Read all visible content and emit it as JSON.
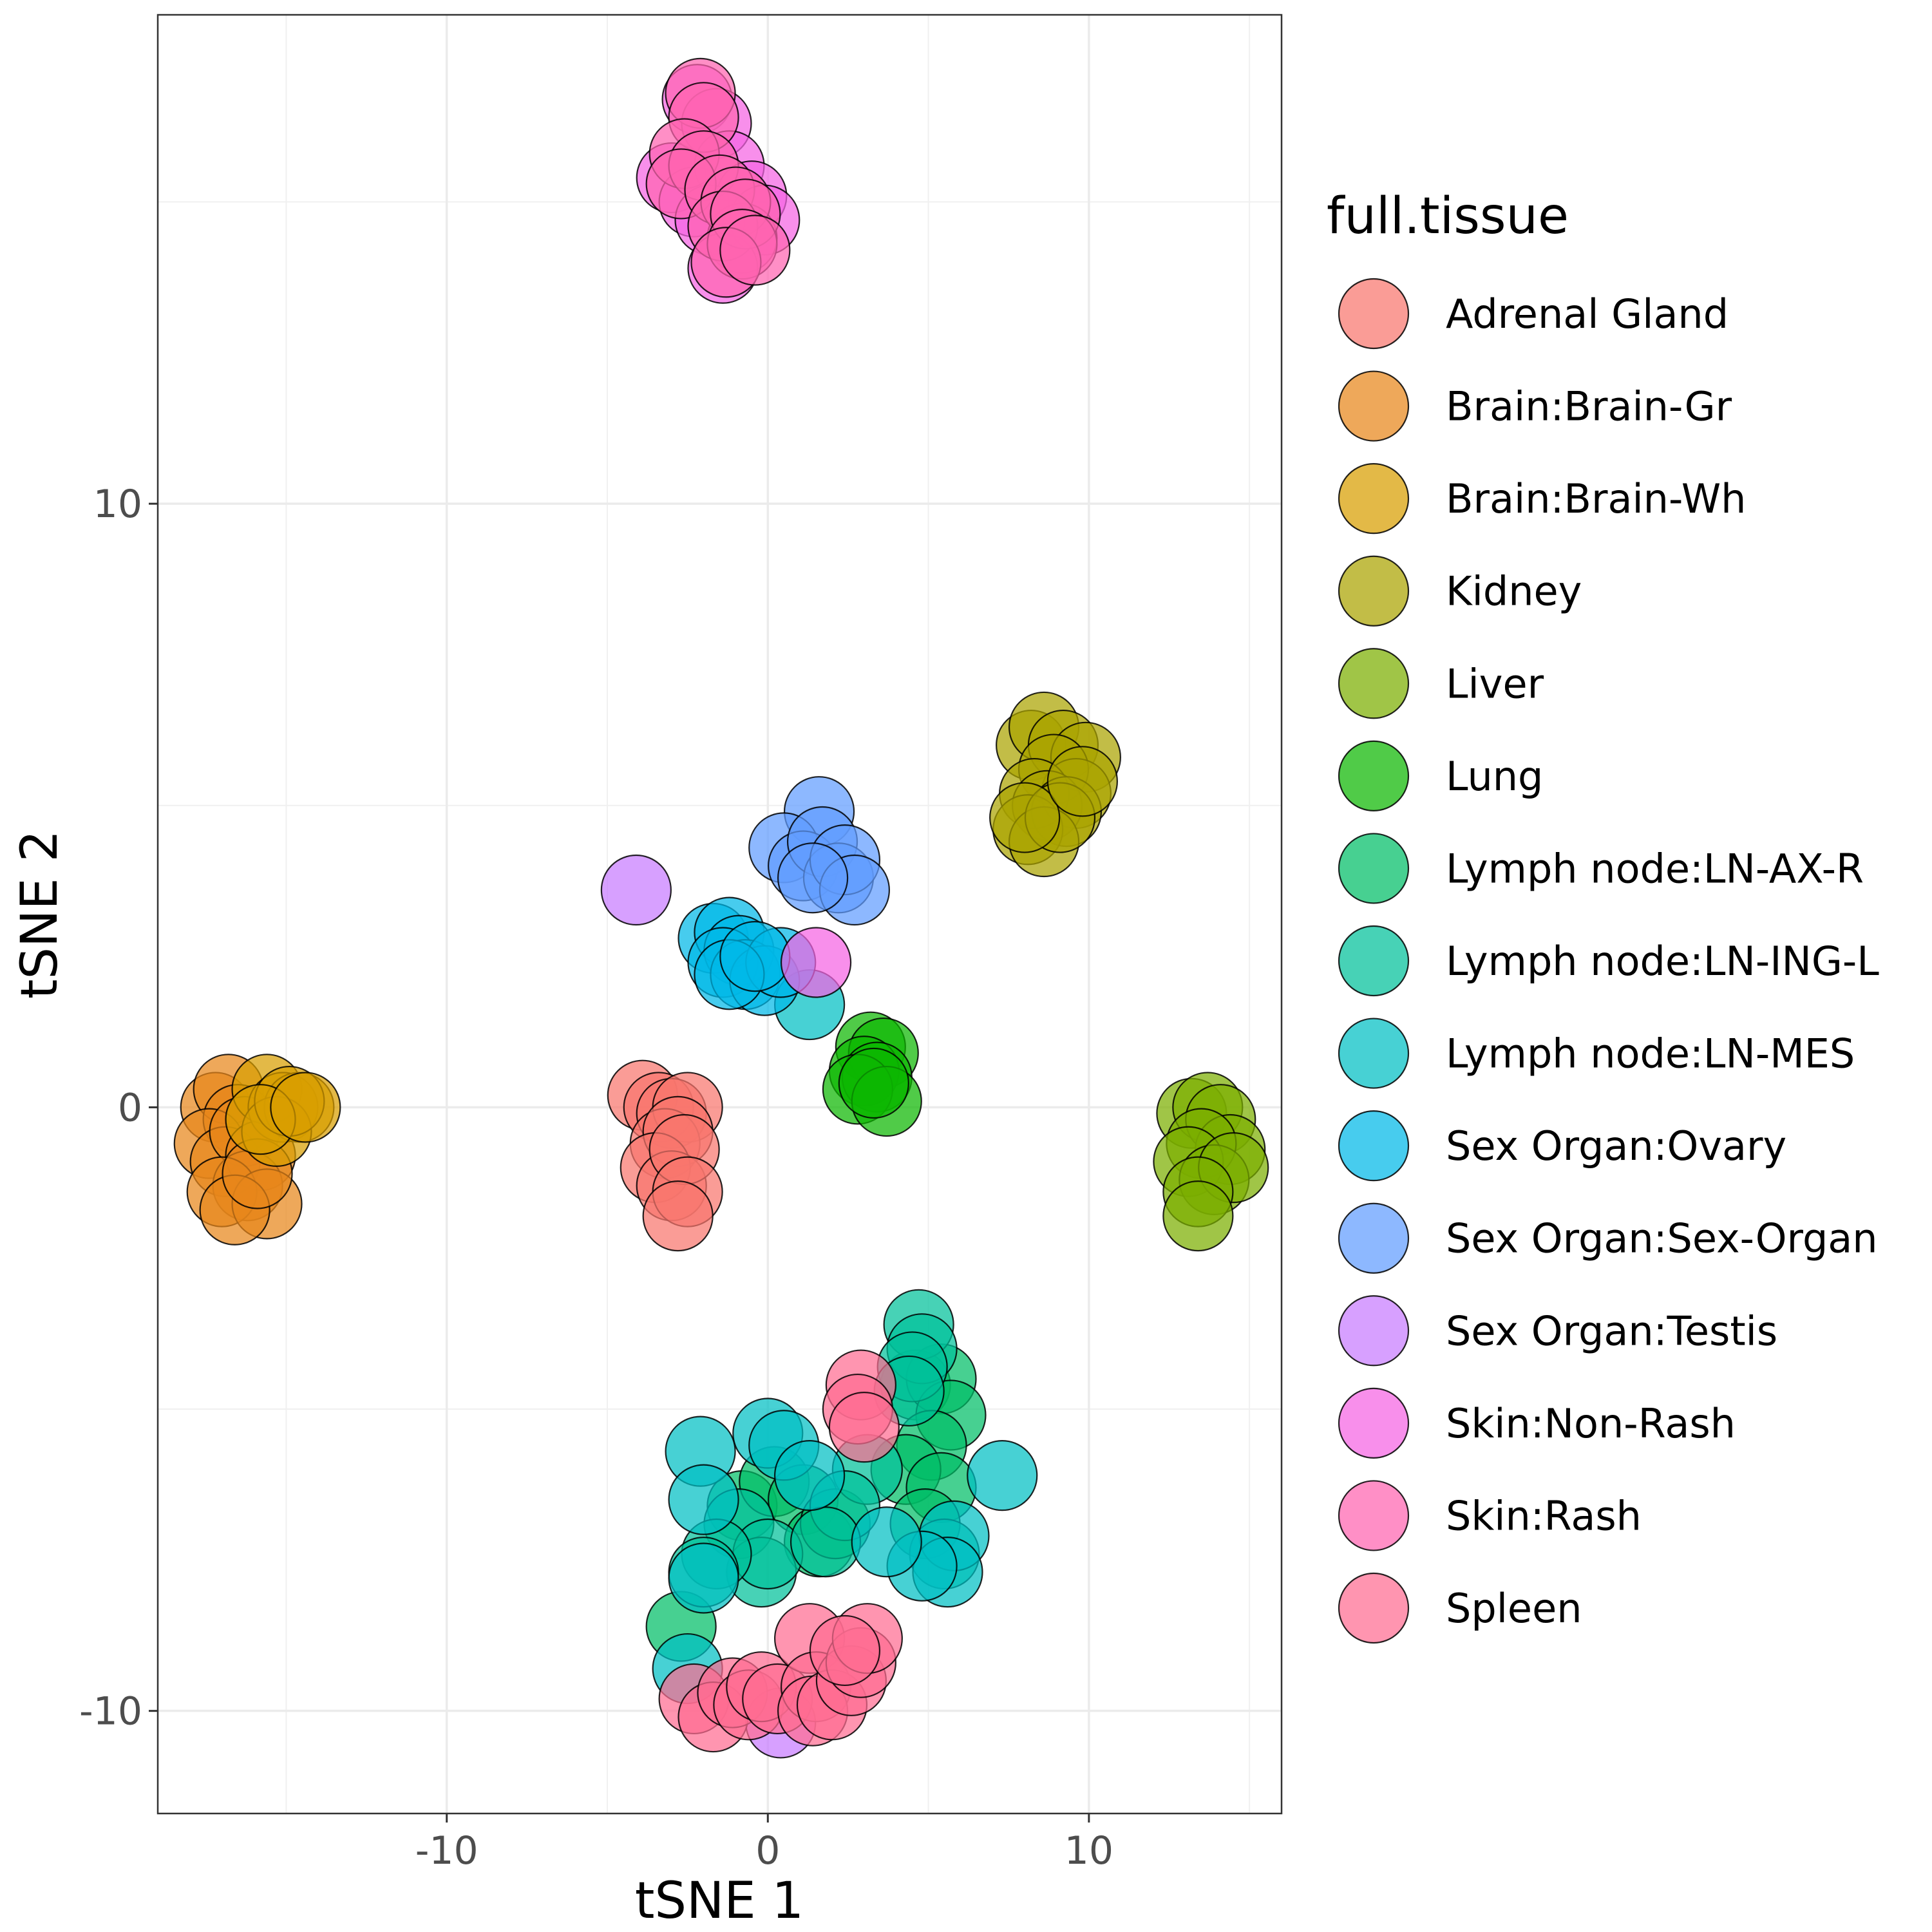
{
  "chart_data": {
    "type": "scatter",
    "xlabel": "tSNE 1",
    "ylabel": "tSNE 2",
    "xlim": [
      -19,
      16
    ],
    "ylim": [
      -11.7,
      18.1
    ],
    "xticks": [
      -10,
      0,
      10
    ],
    "yticks": [
      -10,
      0,
      10
    ],
    "grid": true,
    "legend": {
      "title": "full.tissue",
      "position": "right"
    },
    "series": [
      {
        "name": "Adrenal Gland",
        "color": "#F8766D",
        "points": [
          [
            -3.9,
            0.2
          ],
          [
            -3.4,
            0.0
          ],
          [
            -3.0,
            -0.1
          ],
          [
            -2.5,
            0.0
          ],
          [
            -3.2,
            -0.6
          ],
          [
            -2.8,
            -0.4
          ],
          [
            -3.5,
            -1.0
          ],
          [
            -3.0,
            -1.3
          ],
          [
            -2.6,
            -0.7
          ],
          [
            -2.5,
            -1.4
          ],
          [
            -2.8,
            -1.8
          ]
        ]
      },
      {
        "name": "Brain:Brain-Gr",
        "color": "#E7861B",
        "points": [
          [
            -17.2,
            0.0
          ],
          [
            -16.8,
            0.3
          ],
          [
            -16.5,
            -0.2
          ],
          [
            -17.4,
            -0.6
          ],
          [
            -16.9,
            -0.9
          ],
          [
            -16.3,
            -0.4
          ],
          [
            -15.8,
            -0.8
          ],
          [
            -16.2,
            -1.3
          ],
          [
            -17.0,
            -1.4
          ],
          [
            -15.6,
            -1.6
          ],
          [
            -16.6,
            -1.7
          ],
          [
            -15.9,
            -1.1
          ]
        ]
      },
      {
        "name": "Brain:Brain-Wh",
        "color": "#D89E00",
        "points": [
          [
            -15.6,
            0.3
          ],
          [
            -15.1,
            0.0
          ],
          [
            -14.6,
            0.0
          ],
          [
            -15.3,
            -0.4
          ],
          [
            -14.9,
            0.1
          ],
          [
            -15.8,
            -0.2
          ],
          [
            -14.4,
            0.0
          ]
        ]
      },
      {
        "name": "Kidney",
        "color": "#ABA300",
        "points": [
          [
            8.2,
            6.0
          ],
          [
            8.6,
            6.3
          ],
          [
            9.2,
            6.0
          ],
          [
            9.9,
            5.8
          ],
          [
            8.9,
            5.6
          ],
          [
            9.6,
            5.2
          ],
          [
            8.3,
            5.2
          ],
          [
            8.7,
            5.0
          ],
          [
            9.3,
            4.9
          ],
          [
            8.1,
            4.6
          ],
          [
            8.6,
            4.4
          ],
          [
            9.1,
            4.8
          ],
          [
            8.0,
            4.8
          ],
          [
            9.8,
            5.4
          ]
        ]
      },
      {
        "name": "Liver",
        "color": "#7CAE00",
        "points": [
          [
            13.2,
            -0.1
          ],
          [
            13.7,
            0.0
          ],
          [
            14.1,
            -0.2
          ],
          [
            14.4,
            -0.7
          ],
          [
            13.5,
            -0.6
          ],
          [
            13.1,
            -0.9
          ],
          [
            13.9,
            -1.2
          ],
          [
            14.5,
            -1.0
          ],
          [
            13.4,
            -1.4
          ],
          [
            13.4,
            -1.8
          ]
        ]
      },
      {
        "name": "Lung",
        "color": "#0CB702",
        "points": [
          [
            3.2,
            1.0
          ],
          [
            3.6,
            0.9
          ],
          [
            3.0,
            0.6
          ],
          [
            3.4,
            0.5
          ],
          [
            2.8,
            0.3
          ],
          [
            3.7,
            0.1
          ],
          [
            3.3,
            0.4
          ]
        ]
      },
      {
        "name": "Lymph node:LN-AX-R",
        "color": "#00BE67",
        "points": [
          [
            -2.7,
            -8.6
          ],
          [
            -0.8,
            -6.6
          ],
          [
            0.2,
            -6.2
          ],
          [
            1.1,
            -6.5
          ],
          [
            1.6,
            -7.2
          ],
          [
            2.1,
            -6.9
          ],
          [
            4.6,
            -4.6
          ],
          [
            5.4,
            -4.5
          ],
          [
            5.7,
            -5.1
          ],
          [
            5.1,
            -5.6
          ],
          [
            4.3,
            -6.0
          ],
          [
            5.4,
            -6.3
          ],
          [
            4.9,
            -6.9
          ]
        ]
      },
      {
        "name": "Lymph node:LN-ING-L",
        "color": "#00C19A",
        "points": [
          [
            4.7,
            -3.6
          ],
          [
            4.8,
            -4.0
          ],
          [
            4.5,
            -4.3
          ],
          [
            4.4,
            -4.7
          ],
          [
            3.1,
            -6.0
          ],
          [
            2.4,
            -6.6
          ],
          [
            -0.9,
            -6.9
          ],
          [
            -0.2,
            -7.7
          ],
          [
            0.0,
            -7.4
          ],
          [
            -1.6,
            -7.4
          ],
          [
            -2.0,
            -7.7
          ],
          [
            1.8,
            -7.2
          ],
          [
            5.5,
            -7.4
          ]
        ]
      },
      {
        "name": "Lymph node:LN-MES",
        "color": "#00BFC4",
        "points": [
          [
            -2.1,
            -5.7
          ],
          [
            -2.0,
            -6.5
          ],
          [
            0.0,
            -5.4
          ],
          [
            0.5,
            -5.6
          ],
          [
            1.3,
            -6.1
          ],
          [
            7.3,
            -6.1
          ],
          [
            5.8,
            -7.1
          ],
          [
            5.6,
            -7.7
          ],
          [
            4.8,
            -7.6
          ],
          [
            3.7,
            -7.2
          ],
          [
            -2.0,
            -7.8
          ],
          [
            -2.5,
            -9.3
          ],
          [
            1.3,
            1.7
          ]
        ]
      },
      {
        "name": "Sex Organ:Ovary",
        "color": "#00B8E7",
        "points": [
          [
            -1.7,
            2.8
          ],
          [
            -1.2,
            2.9
          ],
          [
            -0.9,
            2.6
          ],
          [
            -1.4,
            2.4
          ],
          [
            -0.7,
            2.2
          ],
          [
            -0.1,
            2.1
          ],
          [
            0.4,
            2.4
          ],
          [
            -1.2,
            2.2
          ],
          [
            -0.4,
            2.5
          ]
        ]
      },
      {
        "name": "Sex Organ:Sex-Organ",
        "color": "#619CFF",
        "points": [
          [
            1.6,
            4.9
          ],
          [
            0.5,
            4.3
          ],
          [
            1.1,
            4.0
          ],
          [
            1.7,
            4.4
          ],
          [
            2.2,
            3.8
          ],
          [
            2.4,
            4.1
          ],
          [
            2.7,
            3.6
          ],
          [
            1.4,
            3.8
          ]
        ]
      },
      {
        "name": "Sex Organ:Testis",
        "color": "#C77CFF",
        "points": [
          [
            -4.1,
            3.6
          ],
          [
            0.4,
            -10.2
          ]
        ]
      },
      {
        "name": "Skin:Non-Rash",
        "color": "#F564E3",
        "points": [
          [
            -2.2,
            16.7
          ],
          [
            -1.6,
            16.3
          ],
          [
            -3.0,
            15.4
          ],
          [
            -2.3,
            15.0
          ],
          [
            -1.2,
            15.6
          ],
          [
            -0.5,
            15.1
          ],
          [
            -1.8,
            14.7
          ],
          [
            -0.1,
            14.7
          ],
          [
            -0.8,
            14.4
          ],
          [
            -1.4,
            13.9
          ],
          [
            1.5,
            2.4
          ]
        ]
      },
      {
        "name": "Skin:Rash",
        "color": "#FF64B0",
        "points": [
          [
            -2.1,
            16.8
          ],
          [
            -2.0,
            16.4
          ],
          [
            -2.6,
            15.8
          ],
          [
            -2.0,
            15.6
          ],
          [
            -2.7,
            15.3
          ],
          [
            -1.5,
            15.2
          ],
          [
            -1.0,
            15.0
          ],
          [
            -1.4,
            14.6
          ],
          [
            -0.7,
            14.8
          ],
          [
            -0.8,
            14.3
          ],
          [
            -1.3,
            14.0
          ],
          [
            -0.4,
            14.2
          ]
        ]
      },
      {
        "name": "Spleen",
        "color": "#FF6C91",
        "points": [
          [
            2.9,
            -4.6
          ],
          [
            2.8,
            -5.0
          ],
          [
            3.0,
            -5.3
          ],
          [
            -2.3,
            -9.8
          ],
          [
            -1.7,
            -10.1
          ],
          [
            -1.1,
            -9.7
          ],
          [
            -0.6,
            -9.9
          ],
          [
            -0.2,
            -9.6
          ],
          [
            0.3,
            -9.8
          ],
          [
            1.3,
            -8.8
          ],
          [
            1.5,
            -9.6
          ],
          [
            1.4,
            -10.0
          ],
          [
            2.0,
            -9.9
          ],
          [
            2.6,
            -9.5
          ],
          [
            2.9,
            -9.2
          ],
          [
            3.1,
            -8.8
          ],
          [
            2.4,
            -9.0
          ]
        ]
      }
    ]
  }
}
